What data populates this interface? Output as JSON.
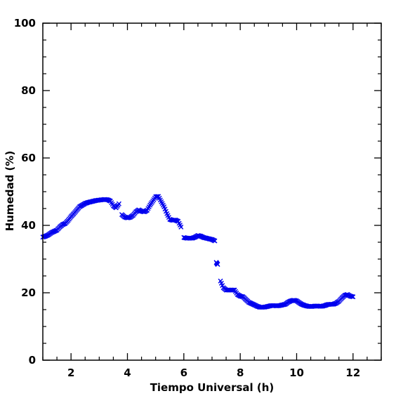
{
  "chart_data": {
    "type": "scatter",
    "xlabel": "Tiempo Universal (h)",
    "ylabel": "Humedad (%)",
    "xlim": [
      1,
      13
    ],
    "ylim": [
      0,
      100
    ],
    "x_ticks": [
      2,
      4,
      6,
      8,
      10,
      12
    ],
    "y_ticks": [
      0,
      20,
      40,
      60,
      80,
      100
    ],
    "x_ticks_labels": [
      "2",
      "4",
      "6",
      "8",
      "10",
      "12"
    ],
    "y_ticks_labels": [
      "0",
      "20",
      "40",
      "60",
      "80",
      "100"
    ],
    "grid": false,
    "marker": "x",
    "color": "#0000ee",
    "series": [
      {
        "x": [
          1.0,
          1.1,
          1.2,
          1.3,
          1.4,
          1.5,
          1.6,
          1.7,
          1.8,
          1.9,
          2.0,
          2.1,
          2.2,
          2.3,
          2.4,
          2.5,
          2.6,
          2.7,
          2.8,
          2.9,
          3.0,
          3.1,
          3.2,
          3.3,
          3.4,
          3.5,
          3.6,
          3.7,
          3.8,
          3.9,
          4.0,
          4.1,
          4.2,
          4.3,
          4.4,
          4.5,
          4.6,
          4.7,
          4.8,
          4.9,
          5.0,
          5.1,
          5.2,
          5.3,
          5.4,
          5.5,
          5.6,
          5.7,
          5.8,
          5.9,
          6.0,
          6.1,
          6.2,
          6.3,
          6.4,
          6.5,
          6.6,
          6.7,
          6.8,
          6.9,
          7.0,
          7.1,
          7.15,
          7.2,
          7.3,
          7.4,
          7.5,
          7.6,
          7.7,
          7.8,
          7.9,
          8.0,
          8.1,
          8.2,
          8.3,
          8.4,
          8.5,
          8.6,
          8.7,
          8.8,
          8.9,
          9.0,
          9.1,
          9.2,
          9.3,
          9.4,
          9.5,
          9.6,
          9.7,
          9.8,
          9.9,
          10.0,
          10.1,
          10.2,
          10.3,
          10.4,
          10.5,
          10.6,
          10.7,
          10.8,
          10.9,
          11.0,
          11.1,
          11.2,
          11.3,
          11.4,
          11.5,
          11.6,
          11.7,
          11.8,
          11.9,
          12.0
        ],
        "y": [
          36.5,
          36.8,
          37.2,
          37.8,
          38.2,
          38.6,
          39.5,
          40.2,
          40.6,
          41.5,
          42.6,
          43.5,
          44.5,
          45.5,
          46.0,
          46.5,
          46.8,
          47.0,
          47.2,
          47.4,
          47.5,
          47.6,
          47.7,
          47.6,
          47.2,
          45.8,
          45.2,
          46.4,
          43.2,
          42.5,
          42.2,
          42.4,
          43.0,
          44.0,
          44.6,
          44.2,
          44.0,
          44.5,
          46.0,
          47.2,
          48.5,
          48.6,
          47.0,
          45.5,
          43.5,
          41.8,
          41.5,
          41.6,
          41.2,
          39.5,
          36.4,
          36.2,
          36.2,
          36.2,
          36.5,
          37.0,
          36.8,
          36.4,
          36.2,
          36.0,
          35.8,
          35.4,
          29.0,
          28.4,
          23.5,
          21.5,
          20.8,
          20.8,
          20.8,
          20.8,
          19.5,
          19.0,
          18.8,
          18.0,
          17.2,
          16.8,
          16.4,
          16.0,
          15.7,
          15.7,
          15.8,
          16.0,
          16.2,
          16.2,
          16.1,
          16.2,
          16.4,
          16.6,
          17.2,
          17.6,
          17.8,
          17.6,
          17.0,
          16.5,
          16.2,
          16.0,
          15.9,
          16.0,
          16.1,
          16.0,
          16.0,
          16.2,
          16.5,
          16.6,
          16.6,
          16.9,
          17.5,
          18.4,
          19.2,
          19.5,
          19.0,
          18.8
        ]
      }
    ]
  }
}
